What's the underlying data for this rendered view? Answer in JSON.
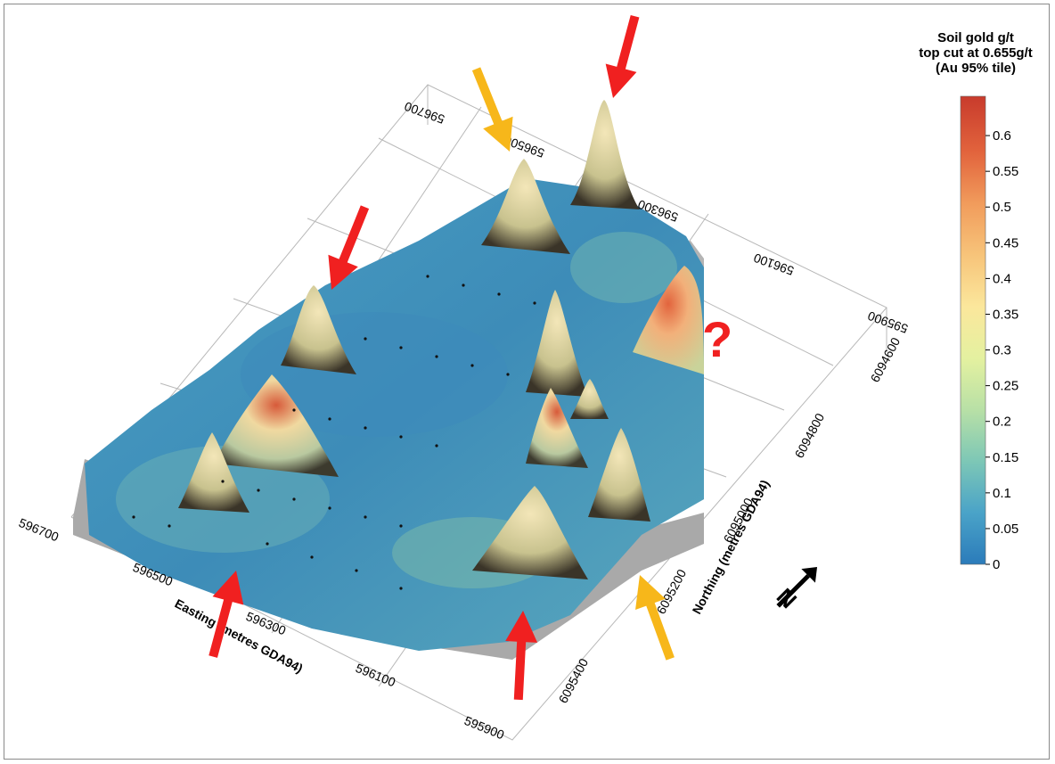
{
  "chart_data": {
    "type": "surface3d",
    "title": "",
    "x_axis": {
      "label": "Easting (metres GDA94)",
      "ticks": [
        "596700",
        "596500",
        "596300",
        "596100",
        "595900"
      ],
      "range": [
        595900,
        596700
      ]
    },
    "y_axis": {
      "label": "Northing (metres GDA94)",
      "ticks": [
        "6094600",
        "6094800",
        "6095000",
        "6095200",
        "6095400"
      ],
      "range": [
        6094600,
        6095400
      ]
    },
    "back_axis_ticks": [
      "596700",
      "596500",
      "596300",
      "596100",
      "595900"
    ],
    "colorbar": {
      "title_lines": [
        "Soil gold g/t",
        "top cut at 0.655g/t",
        "(Au 95% tile)"
      ],
      "ticks": [
        "0",
        "0.05",
        "0.1",
        "0.15",
        "0.2",
        "0.25",
        "0.3",
        "0.35",
        "0.4",
        "0.45",
        "0.5",
        "0.55",
        "0.6"
      ],
      "values": [
        0,
        0.05,
        0.1,
        0.15,
        0.2,
        0.25,
        0.3,
        0.35,
        0.4,
        0.45,
        0.5,
        0.55,
        0.6
      ],
      "range": [
        0,
        0.655
      ],
      "colormap": [
        "#2b7bba",
        "#4aa3c8",
        "#7dc7b6",
        "#b8e0a6",
        "#e4f1a0",
        "#fbe79c",
        "#f7c47a",
        "#f19c5c",
        "#e2643d",
        "#c83b2c"
      ]
    },
    "annotations": {
      "question_mark": "?",
      "north_arrow_letter": "N",
      "red_arrow_color": "#f02020",
      "yellow_arrow_color": "#f7b71a"
    }
  }
}
